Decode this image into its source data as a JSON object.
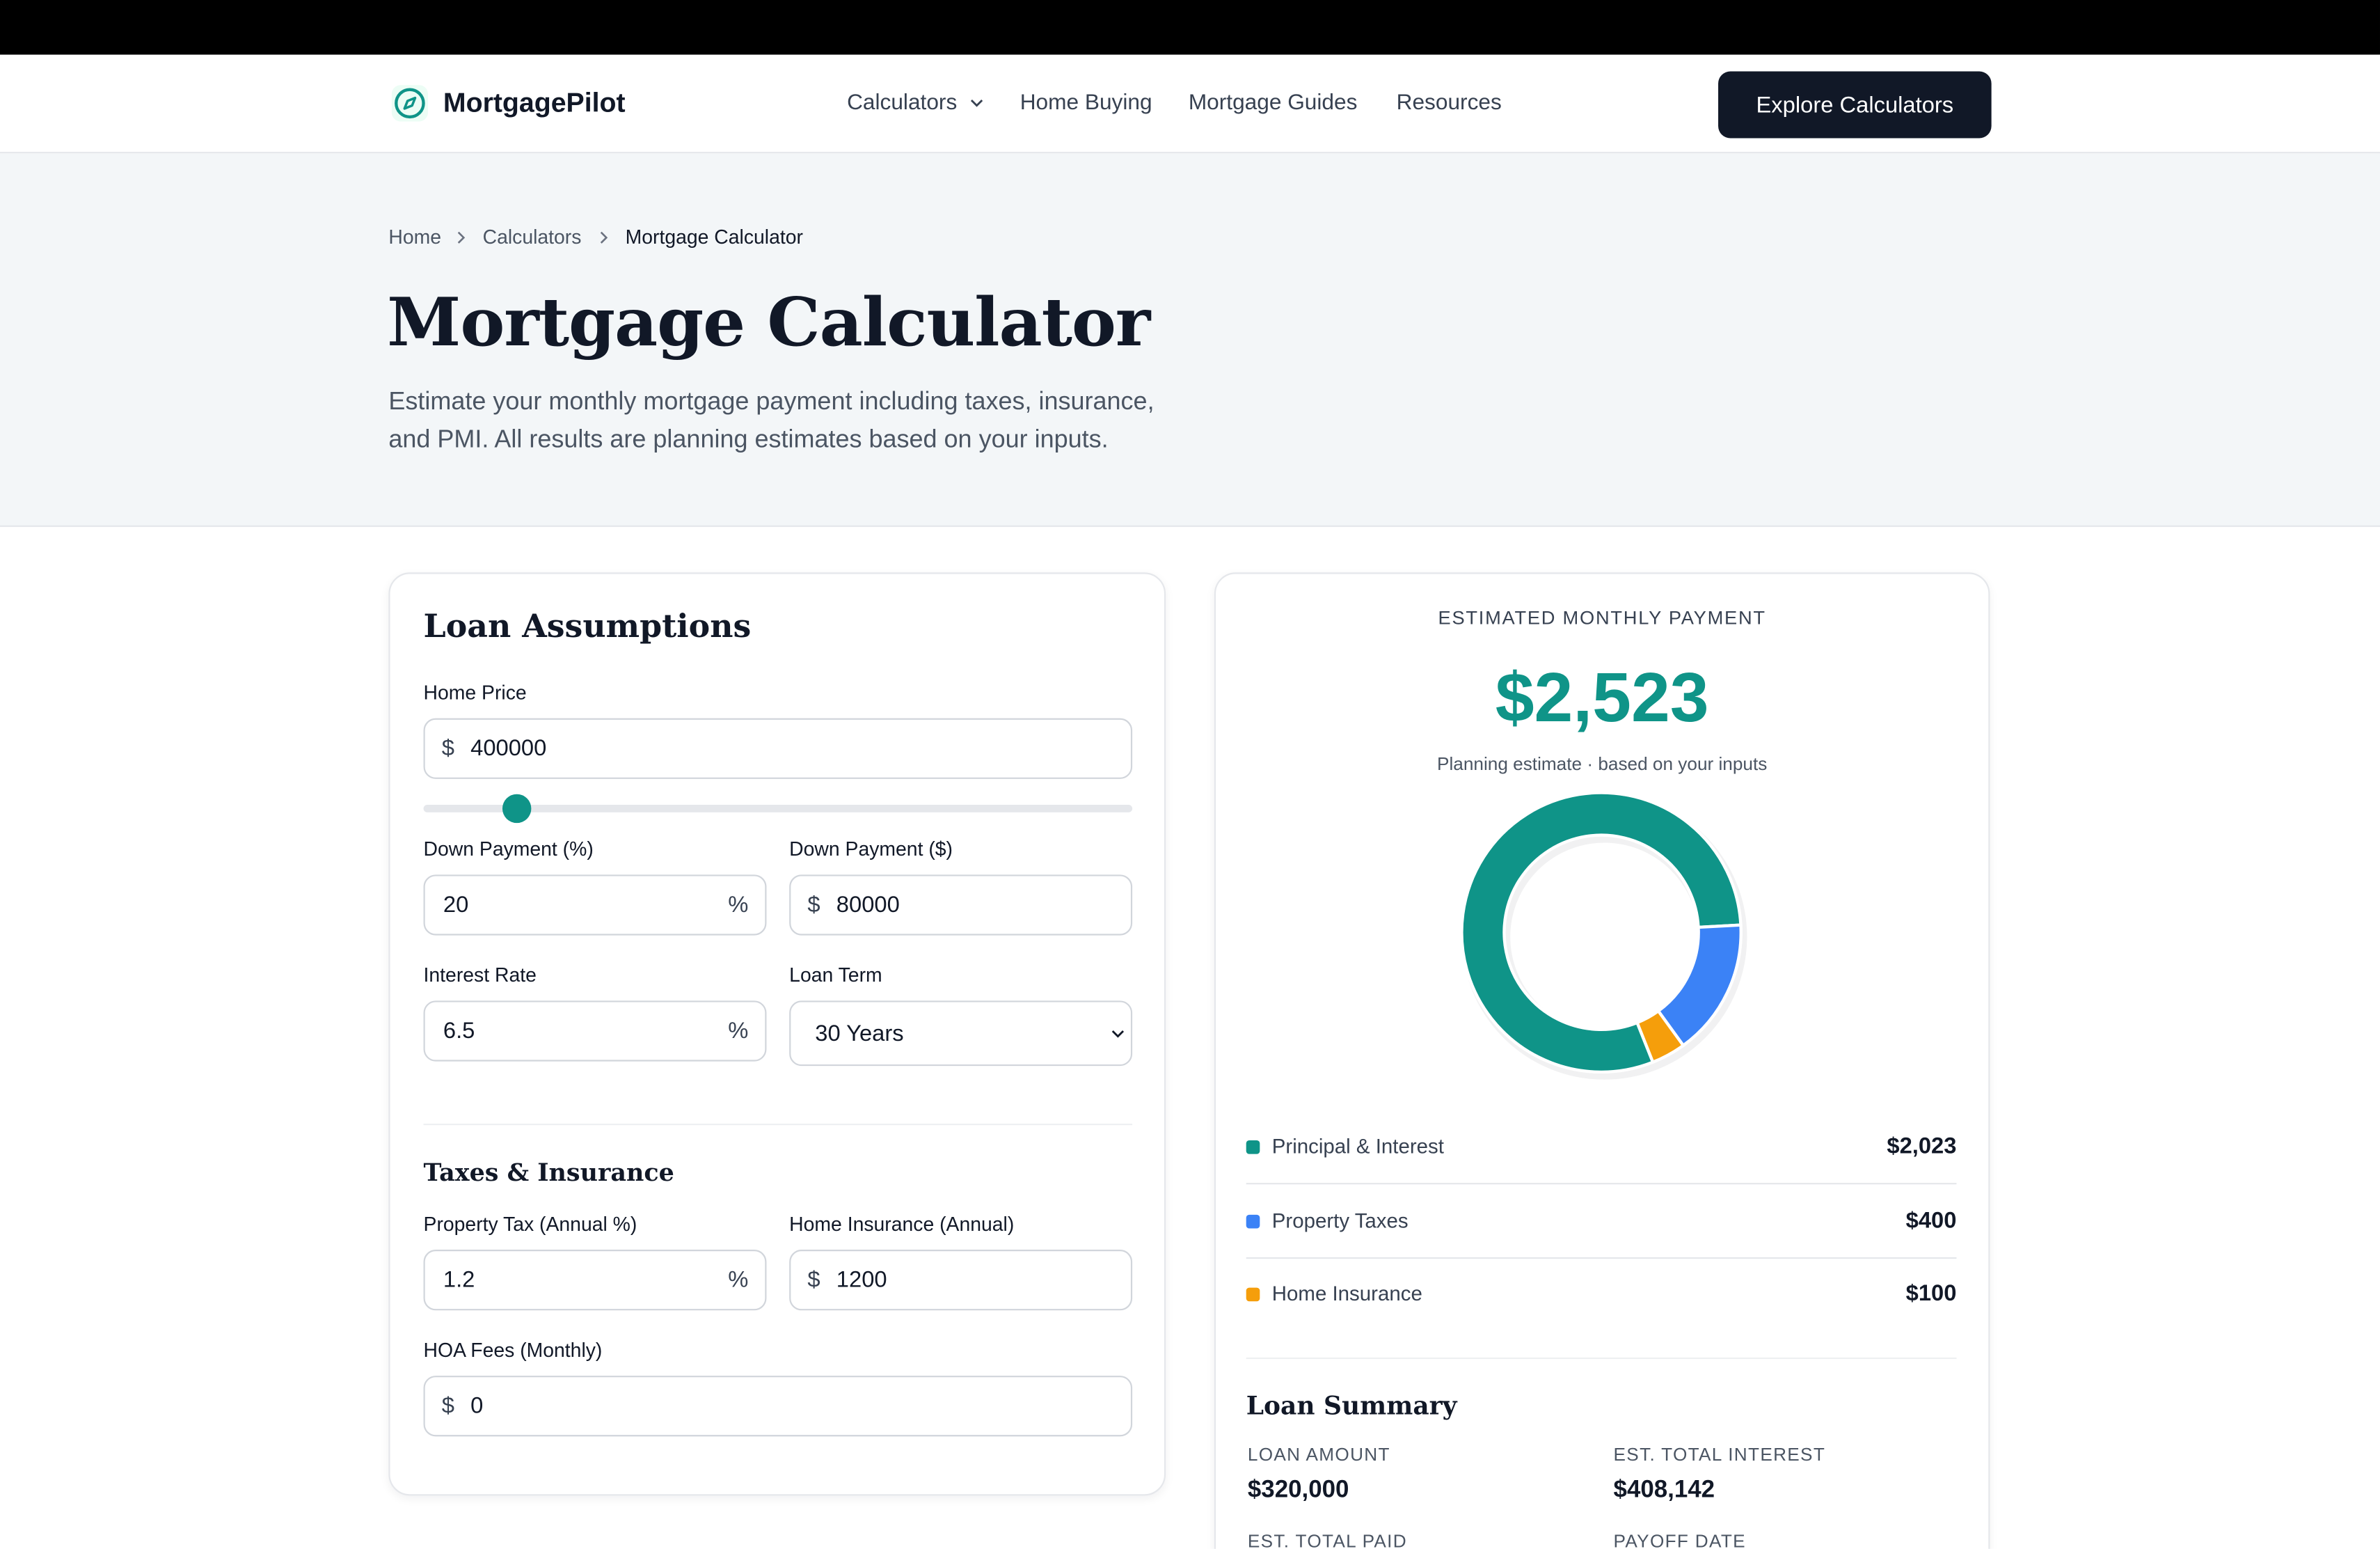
{
  "nav": {
    "brand": "MortgagePilot",
    "links": [
      "Calculators",
      "Home Buying",
      "Mortgage Guides",
      "Resources"
    ],
    "cta": "Explore Calculators"
  },
  "breadcrumb": [
    "Home",
    "Calculators",
    "Mortgage Calculator"
  ],
  "header": {
    "title": "Mortgage Calculator",
    "description_lines": [
      "Estimate your monthly mortgage payment including taxes, insurance,",
      "and PMI. All results are planning estimates based on your inputs."
    ]
  },
  "form": {
    "title": "Loan Assumptions",
    "fields": [
      {
        "label": "Home Price",
        "prefix": "$",
        "value": "400000"
      },
      {
        "label": "Down Payment (%)",
        "value": "20",
        "suffix": "%"
      },
      {
        "label": "Down Payment ($)",
        "prefix": "$",
        "value": "80000"
      },
      {
        "label": "Interest Rate",
        "value": "6.5",
        "suffix": "%"
      },
      {
        "label": "Loan Term",
        "value": "30 Years"
      }
    ],
    "section_title": "Taxes & Insurance",
    "section_fields": [
      {
        "label": "Property Tax (Annual %)",
        "value": "1.2",
        "suffix": "%"
      },
      {
        "label": "Home Insurance (Annual)",
        "prefix": "$",
        "value": "1200"
      },
      {
        "label": "HOA Fees (Monthly)",
        "prefix": "$",
        "value": "0"
      }
    ]
  },
  "result": {
    "label": "ESTIMATED MONTHLY PAYMENT",
    "amount": "$2,523",
    "note": "Planning estimate · based on your inputs"
  },
  "chart_data": {
    "type": "donut",
    "categories": [
      "Principal & Interest",
      "Property Taxes",
      "Home Insurance"
    ],
    "values": [
      2023,
      400,
      100
    ],
    "value_labels": [
      "$2,023",
      "$400",
      "$100"
    ],
    "colors": [
      "#0f9488",
      "#3b82f6",
      "#f59e0b"
    ]
  },
  "summary": {
    "title": "Loan Summary",
    "items": [
      {
        "label": "LOAN AMOUNT",
        "value": "$320,000"
      },
      {
        "label": "EST. TOTAL INTEREST",
        "value": "$408,142"
      },
      {
        "label": "EST. TOTAL PAID"
      },
      {
        "label": "PAYOFF DATE"
      }
    ]
  }
}
